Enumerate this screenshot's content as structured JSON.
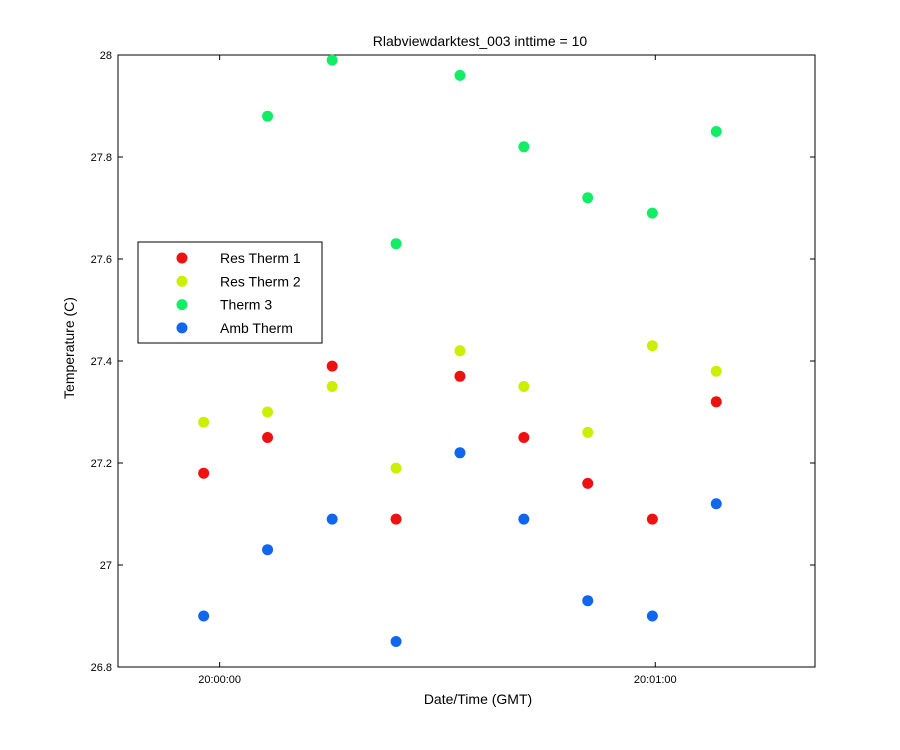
{
  "chart_data": {
    "type": "scatter",
    "title": "Rlabviewdarktest_003 inttime = 10",
    "xlabel": "Date/Time (GMT)",
    "ylabel": "Temperature (C)",
    "x_unit": "seconds after 20:00:00",
    "xlim": [
      -14,
      82
    ],
    "ylim": [
      26.8,
      28.0
    ],
    "xticks": [
      {
        "value": 0,
        "label": "20:00:00"
      },
      {
        "value": 60,
        "label": "20:01:00"
      }
    ],
    "yticks": [
      {
        "value": 26.8,
        "label": "26.8"
      },
      {
        "value": 27.0,
        "label": "27"
      },
      {
        "value": 27.2,
        "label": "27.2"
      },
      {
        "value": 27.4,
        "label": "27.4"
      },
      {
        "value": 27.6,
        "label": "27.6"
      },
      {
        "value": 27.8,
        "label": "27.8"
      },
      {
        "value": 28.0,
        "label": "28"
      }
    ],
    "grid": false,
    "legend_position": "left",
    "x": [
      -2.2,
      6.6,
      15.5,
      24.3,
      33.1,
      41.9,
      50.7,
      59.6,
      68.4
    ],
    "series": [
      {
        "name": "Res Therm 1",
        "color": "#ee1111",
        "values": [
          27.18,
          27.25,
          27.39,
          27.09,
          27.37,
          27.25,
          27.16,
          27.09,
          27.32
        ]
      },
      {
        "name": "Res Therm 2",
        "color": "#ccee00",
        "values": [
          27.28,
          27.3,
          27.35,
          27.19,
          27.42,
          27.35,
          27.26,
          27.43,
          27.38
        ]
      },
      {
        "name": "Therm 3",
        "color": "#11ee66",
        "values": [
          null,
          27.88,
          27.99,
          27.63,
          27.96,
          27.82,
          27.72,
          27.69,
          27.85
        ]
      },
      {
        "name": "Amb Therm",
        "color": "#1166ee",
        "values": [
          26.9,
          27.03,
          27.09,
          26.85,
          27.22,
          27.09,
          26.93,
          26.9,
          27.12
        ]
      }
    ]
  }
}
